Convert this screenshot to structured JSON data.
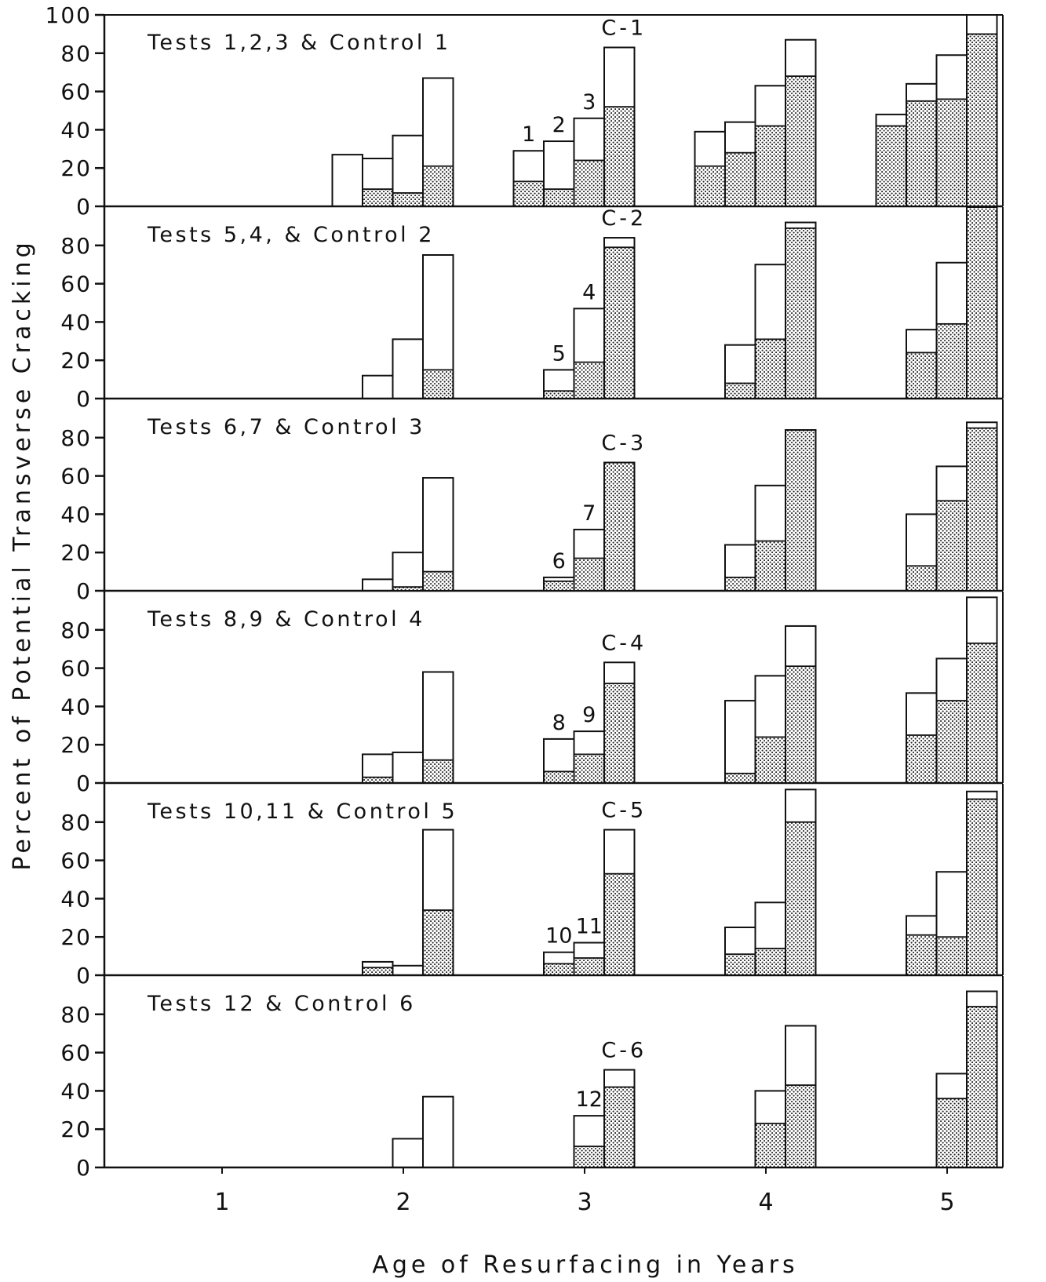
{
  "chart_data": {
    "type": "bar",
    "xlabel": "Age of Resurfacing in Years",
    "ylabel": "Percent of Potential Transverse Cracking",
    "x_ticks": [
      "1",
      "2",
      "3",
      "4",
      "5"
    ],
    "ylim": [
      0,
      100
    ],
    "grid": false,
    "panels": [
      {
        "title": "Tests 1,2,3 & Control 1",
        "y_ticks": [
          "0",
          "20",
          "40",
          "60",
          "80",
          "100"
        ],
        "series_order": [
          "1",
          "2",
          "3",
          "C-1"
        ],
        "series_labels": [
          "1",
          "2",
          "3",
          "C-1"
        ],
        "bars": [
          {
            "series": "1",
            "year": 2,
            "total": 27,
            "shaded": 0
          },
          {
            "series": "2",
            "year": 2,
            "total": 25,
            "shaded": 9
          },
          {
            "series": "3",
            "year": 2,
            "total": 37,
            "shaded": 7
          },
          {
            "series": "C-1",
            "year": 2,
            "total": 67,
            "shaded": 21
          },
          {
            "series": "1",
            "year": 3,
            "total": 29,
            "shaded": 13
          },
          {
            "series": "2",
            "year": 3,
            "total": 34,
            "shaded": 9
          },
          {
            "series": "3",
            "year": 3,
            "total": 46,
            "shaded": 24
          },
          {
            "series": "C-1",
            "year": 3,
            "total": 83,
            "shaded": 52
          },
          {
            "series": "1",
            "year": 4,
            "total": 39,
            "shaded": 21
          },
          {
            "series": "2",
            "year": 4,
            "total": 44,
            "shaded": 28
          },
          {
            "series": "3",
            "year": 4,
            "total": 63,
            "shaded": 42
          },
          {
            "series": "C-1",
            "year": 4,
            "total": 87,
            "shaded": 68
          },
          {
            "series": "1",
            "year": 5,
            "total": 48,
            "shaded": 42
          },
          {
            "series": "2",
            "year": 5,
            "total": 64,
            "shaded": 55
          },
          {
            "series": "3",
            "year": 5,
            "total": 79,
            "shaded": 56
          },
          {
            "series": "C-1",
            "year": 5,
            "total": 100,
            "shaded": 90
          }
        ]
      },
      {
        "title": "Tests 5,4, & Control 2",
        "y_ticks": [
          "0",
          "20",
          "40",
          "60",
          "80"
        ],
        "series_order": [
          "5",
          "4",
          "C-2"
        ],
        "series_labels": [
          "5",
          "4",
          "C-2"
        ],
        "bars": [
          {
            "series": "5",
            "year": 2,
            "total": 12,
            "shaded": 0
          },
          {
            "series": "4",
            "year": 2,
            "total": 31,
            "shaded": 0
          },
          {
            "series": "C-2",
            "year": 2,
            "total": 75,
            "shaded": 15
          },
          {
            "series": "5",
            "year": 3,
            "total": 15,
            "shaded": 4
          },
          {
            "series": "4",
            "year": 3,
            "total": 47,
            "shaded": 19
          },
          {
            "series": "C-2",
            "year": 3,
            "total": 84,
            "shaded": 79
          },
          {
            "series": "5",
            "year": 4,
            "total": 28,
            "shaded": 8
          },
          {
            "series": "4",
            "year": 4,
            "total": 70,
            "shaded": 31
          },
          {
            "series": "C-2",
            "year": 4,
            "total": 92,
            "shaded": 89
          },
          {
            "series": "5",
            "year": 5,
            "total": 36,
            "shaded": 24
          },
          {
            "series": "4",
            "year": 5,
            "total": 71,
            "shaded": 39
          },
          {
            "series": "C-2",
            "year": 5,
            "total": 100,
            "shaded": 100
          }
        ]
      },
      {
        "title": "Tests 6,7 & Control 3",
        "y_ticks": [
          "0",
          "20",
          "40",
          "60",
          "80"
        ],
        "series_order": [
          "6",
          "7",
          "C-3"
        ],
        "series_labels": [
          "6",
          "7",
          "C-3"
        ],
        "bars": [
          {
            "series": "6",
            "year": 2,
            "total": 6,
            "shaded": 0
          },
          {
            "series": "7",
            "year": 2,
            "total": 20,
            "shaded": 2
          },
          {
            "series": "C-3",
            "year": 2,
            "total": 59,
            "shaded": 10
          },
          {
            "series": "6",
            "year": 3,
            "total": 7,
            "shaded": 5
          },
          {
            "series": "7",
            "year": 3,
            "total": 32,
            "shaded": 17
          },
          {
            "series": "C-3",
            "year": 3,
            "total": 67,
            "shaded": 67
          },
          {
            "series": "6",
            "year": 4,
            "total": 24,
            "shaded": 7
          },
          {
            "series": "7",
            "year": 4,
            "total": 55,
            "shaded": 26
          },
          {
            "series": "C-3",
            "year": 4,
            "total": 84,
            "shaded": 84
          },
          {
            "series": "6",
            "year": 5,
            "total": 40,
            "shaded": 13
          },
          {
            "series": "7",
            "year": 5,
            "total": 65,
            "shaded": 47
          },
          {
            "series": "C-3",
            "year": 5,
            "total": 88,
            "shaded": 85
          }
        ]
      },
      {
        "title": "Tests 8,9 & Control 4",
        "y_ticks": [
          "0",
          "20",
          "40",
          "60",
          "80"
        ],
        "series_order": [
          "8",
          "9",
          "C-4"
        ],
        "series_labels": [
          "8",
          "9",
          "C-4"
        ],
        "bars": [
          {
            "series": "8",
            "year": 2,
            "total": 15,
            "shaded": 3
          },
          {
            "series": "9",
            "year": 2,
            "total": 16,
            "shaded": 0
          },
          {
            "series": "C-4",
            "year": 2,
            "total": 58,
            "shaded": 12
          },
          {
            "series": "8",
            "year": 3,
            "total": 23,
            "shaded": 6
          },
          {
            "series": "9",
            "year": 3,
            "total": 27,
            "shaded": 15
          },
          {
            "series": "C-4",
            "year": 3,
            "total": 63,
            "shaded": 52
          },
          {
            "series": "8",
            "year": 4,
            "total": 43,
            "shaded": 5
          },
          {
            "series": "9",
            "year": 4,
            "total": 56,
            "shaded": 24
          },
          {
            "series": "C-4",
            "year": 4,
            "total": 82,
            "shaded": 61
          },
          {
            "series": "8",
            "year": 5,
            "total": 47,
            "shaded": 25
          },
          {
            "series": "9",
            "year": 5,
            "total": 65,
            "shaded": 43
          },
          {
            "series": "C-4",
            "year": 5,
            "total": 97,
            "shaded": 73
          }
        ]
      },
      {
        "title": "Tests 10,11 & Control 5",
        "y_ticks": [
          "0",
          "20",
          "40",
          "60",
          "80"
        ],
        "series_order": [
          "10",
          "11",
          "C-5"
        ],
        "series_labels": [
          "10",
          "11",
          "C-5"
        ],
        "bars": [
          {
            "series": "10",
            "year": 2,
            "total": 7,
            "shaded": 4
          },
          {
            "series": "11",
            "year": 2,
            "total": 5,
            "shaded": 0
          },
          {
            "series": "C-5",
            "year": 2,
            "total": 76,
            "shaded": 34
          },
          {
            "series": "10",
            "year": 3,
            "total": 12,
            "shaded": 6
          },
          {
            "series": "11",
            "year": 3,
            "total": 17,
            "shaded": 9
          },
          {
            "series": "C-5",
            "year": 3,
            "total": 76,
            "shaded": 53
          },
          {
            "series": "10",
            "year": 4,
            "total": 25,
            "shaded": 11
          },
          {
            "series": "11",
            "year": 4,
            "total": 38,
            "shaded": 14
          },
          {
            "series": "C-5",
            "year": 4,
            "total": 97,
            "shaded": 80
          },
          {
            "series": "10",
            "year": 5,
            "total": 31,
            "shaded": 21
          },
          {
            "series": "11",
            "year": 5,
            "total": 54,
            "shaded": 20
          },
          {
            "series": "C-5",
            "year": 5,
            "total": 96,
            "shaded": 92
          }
        ]
      },
      {
        "title": "Tests 12 & Control 6",
        "y_ticks": [
          "0",
          "20",
          "40",
          "60",
          "80"
        ],
        "series_order": [
          "12",
          "C-6"
        ],
        "series_labels": [
          "12",
          "C-6"
        ],
        "bars": [
          {
            "series": "12",
            "year": 2,
            "total": 15,
            "shaded": 0
          },
          {
            "series": "C-6",
            "year": 2,
            "total": 37,
            "shaded": 0
          },
          {
            "series": "12",
            "year": 3,
            "total": 27,
            "shaded": 11
          },
          {
            "series": "C-6",
            "year": 3,
            "total": 51,
            "shaded": 42
          },
          {
            "series": "12",
            "year": 4,
            "total": 40,
            "shaded": 23
          },
          {
            "series": "C-6",
            "year": 4,
            "total": 74,
            "shaded": 43
          },
          {
            "series": "12",
            "year": 5,
            "total": 49,
            "shaded": 36
          },
          {
            "series": "C-6",
            "year": 5,
            "total": 92,
            "shaded": 84
          }
        ]
      }
    ]
  }
}
